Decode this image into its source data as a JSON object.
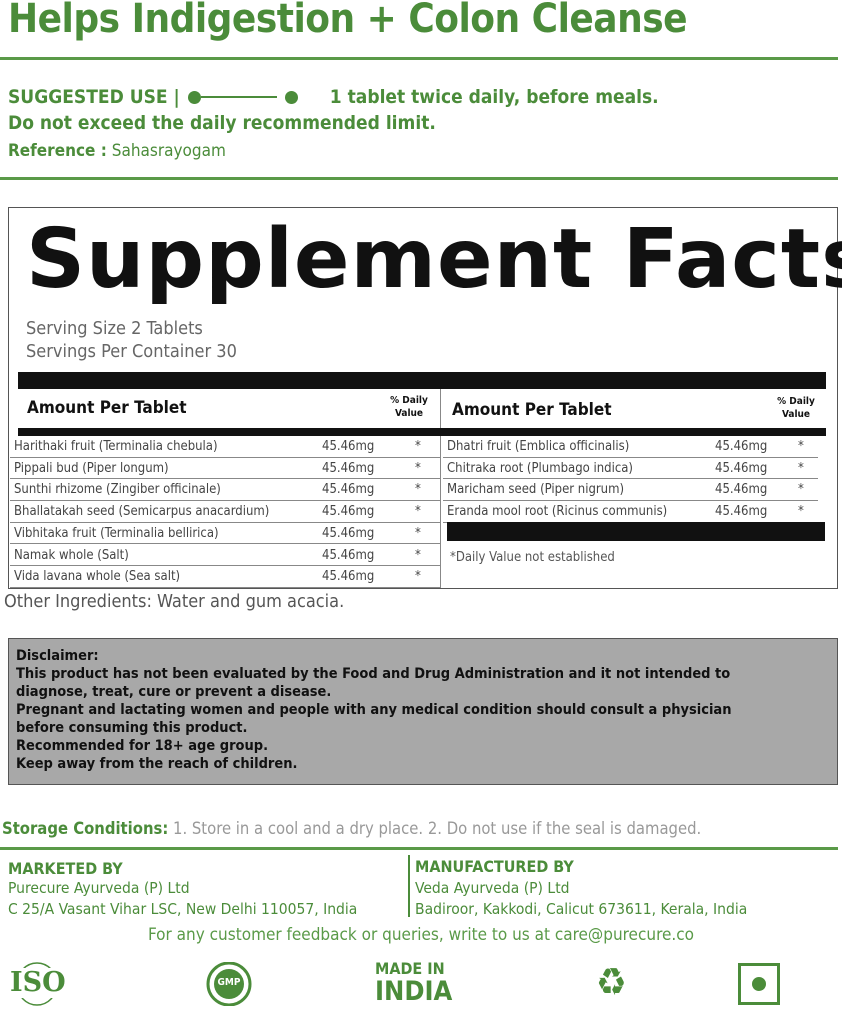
{
  "title": "Helps Indigestion + Colon Cleanse",
  "suggested_use": {
    "label": "SUGGESTED USE |",
    "text": "1 tablet twice daily, before meals.",
    "limit": "Do not exceed the daily recommended limit.",
    "reference_label": "Reference :",
    "reference": "Sahasrayogam"
  },
  "facts": {
    "title": "Supplement Facts",
    "serving_size": "Serving Size 2 Tablets",
    "servings_per_container": "Servings Per Container 30",
    "header": "Amount Per Tablet",
    "dv_header": "% Daily Value",
    "left_rows": [
      {
        "name": "Harithaki fruit (Terminalia chebula)",
        "amount": "45.46mg",
        "dv": "*"
      },
      {
        "name": "Pippali bud (Piper longum)",
        "amount": "45.46mg",
        "dv": "*"
      },
      {
        "name": "Sunthi rhizome (Zingiber officinale)",
        "amount": "45.46mg",
        "dv": "*"
      },
      {
        "name": "Bhallatakah seed (Semicarpus anacardium)",
        "amount": "45.46mg",
        "dv": "*"
      },
      {
        "name": "Vibhitaka fruit  (Terminalia bellirica)",
        "amount": "45.46mg",
        "dv": "*"
      },
      {
        "name": "Namak whole (Salt)",
        "amount": "45.46mg",
        "dv": "*"
      },
      {
        "name": "Vida lavana whole (Sea salt)",
        "amount": "45.46mg",
        "dv": "*"
      }
    ],
    "right_rows": [
      {
        "name": "Dhatri fruit (Emblica officinalis)",
        "amount": "45.46mg",
        "dv": "*"
      },
      {
        "name": "Chitraka root (Plumbago indica)",
        "amount": "45.46mg",
        "dv": "*"
      },
      {
        "name": "Maricham seed (Piper nigrum)",
        "amount": "45.46mg",
        "dv": "*"
      },
      {
        "name": "Eranda mool root (Ricinus communis)",
        "amount": "45.46mg",
        "dv": "*"
      }
    ],
    "note": "*Daily Value not established"
  },
  "other_ingredients": "Other Ingredients: Water and gum acacia.",
  "disclaimer": [
    "Disclaimer:",
    "This product has not been evaluated by the Food and Drug Administration and it not intended to",
    "diagnose, treat, cure or prevent a disease.",
    "Pregnant and lactating women and people with any medical condition should consult a physician",
    "before consuming this product.",
    "Recommended for 18+ age group.",
    "Keep away from the reach of children."
  ],
  "storage": {
    "label": "Storage Conditions:",
    "text": " 1. Store in a cool and a dry place. 2. Do not use if the seal is damaged."
  },
  "marketed": {
    "label": "MARKETED BY",
    "name": "Purecure Ayurveda (P) Ltd",
    "address": "C 25/A Vasant Vihar LSC, New Delhi 110057, India"
  },
  "manufactured": {
    "label": "MANUFACTURED BY",
    "name": "Veda Ayurveda (P) Ltd",
    "address": "Badiroor, Kakkodi, Calicut 673611, Kerala, India"
  },
  "feedback": "For any customer feedback or queries, write to us at care@purecure.co",
  "logos": {
    "iso": "ISO",
    "gmp": "GMP",
    "made_in": "MADE IN",
    "india": "INDIA"
  },
  "colors": {
    "green": "#4b8c3a",
    "disclaimer_bg": "#a8a8a8"
  }
}
